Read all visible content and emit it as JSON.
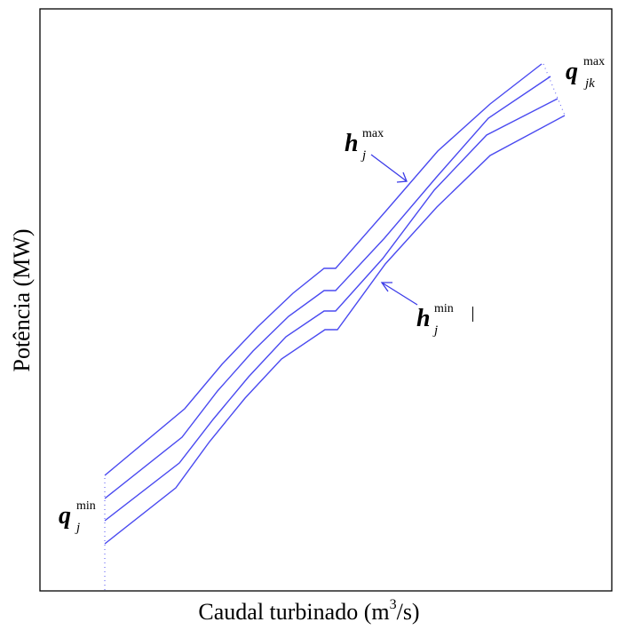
{
  "chart_data": {
    "type": "line",
    "xlabel_text": "Caudal turbinado (m",
    "xlabel_sup": "3",
    "xlabel_end": "/s)",
    "ylabel": "Potência (MW)",
    "grid": false,
    "annotations": {
      "h_max": {
        "base": "h",
        "sup": "max",
        "sub": "j"
      },
      "h_min": {
        "base": "h",
        "sup": "min",
        "sub": "j"
      },
      "q_max": {
        "base": "q",
        "sup": "max",
        "sub": "jk"
      },
      "q_min": {
        "base": "q",
        "sup": "min",
        "sub": "j"
      }
    },
    "series": [
      {
        "x": [
          118,
          208,
          250,
          290,
          330,
          365,
          378,
          435,
          493,
          552,
          610
        ],
        "y": [
          535,
          460,
          410,
          368,
          330,
          302,
          302,
          237,
          170,
          117,
          72
        ]
      },
      {
        "x": [
          118,
          205,
          245,
          285,
          325,
          365,
          378,
          433,
          491,
          550,
          620
        ],
        "y": [
          561,
          492,
          440,
          395,
          356,
          327,
          327,
          268,
          200,
          133,
          86
        ]
      },
      {
        "x": [
          118,
          202,
          240,
          280,
          322,
          365,
          378,
          431,
          489,
          548,
          628
        ],
        "y": [
          586,
          521,
          472,
          424,
          379,
          350,
          350,
          291,
          214,
          152,
          111
        ]
      },
      {
        "x": [
          118,
          198,
          236,
          276,
          317,
          366,
          380,
          434,
          492,
          552,
          636
        ],
        "y": [
          612,
          549,
          497,
          448,
          404,
          371,
          371,
          297,
          233,
          175,
          130
        ]
      }
    ]
  }
}
